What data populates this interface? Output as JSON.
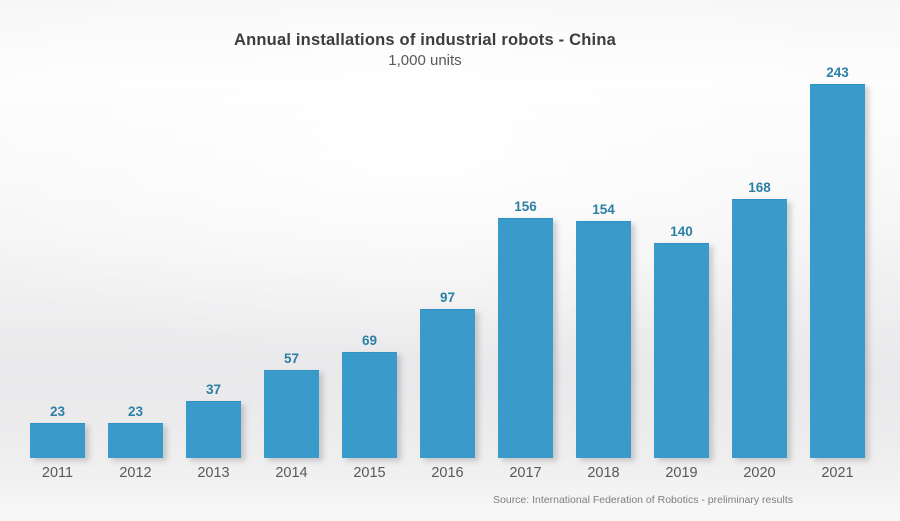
{
  "header": {
    "title": "Annual installations of industrial robots - China",
    "subtitle": "1,000 units"
  },
  "footer": {
    "source": "Source: International Federation of Robotics - preliminary results"
  },
  "chart_data": {
    "type": "bar",
    "title": "Annual installations of industrial robots - China",
    "subtitle": "1,000 units",
    "unit": "1,000 units",
    "categories": [
      "2011",
      "2012",
      "2013",
      "2014",
      "2015",
      "2016",
      "2017",
      "2018",
      "2019",
      "2020",
      "2021"
    ],
    "values": [
      23,
      23,
      37,
      57,
      69,
      97,
      156,
      154,
      140,
      168,
      243
    ],
    "xlabel": "",
    "ylabel": "",
    "ylim": [
      0,
      250
    ],
    "grid": false,
    "legend": false,
    "data_labels": true,
    "colors": {
      "bar_fill": "#3a9bcb",
      "value_label": "#2c7fa5",
      "year_label": "#595959",
      "title_text": "#3d3d3d",
      "subtitle_text": "#595959",
      "source_text": "#7f7f7f"
    }
  }
}
